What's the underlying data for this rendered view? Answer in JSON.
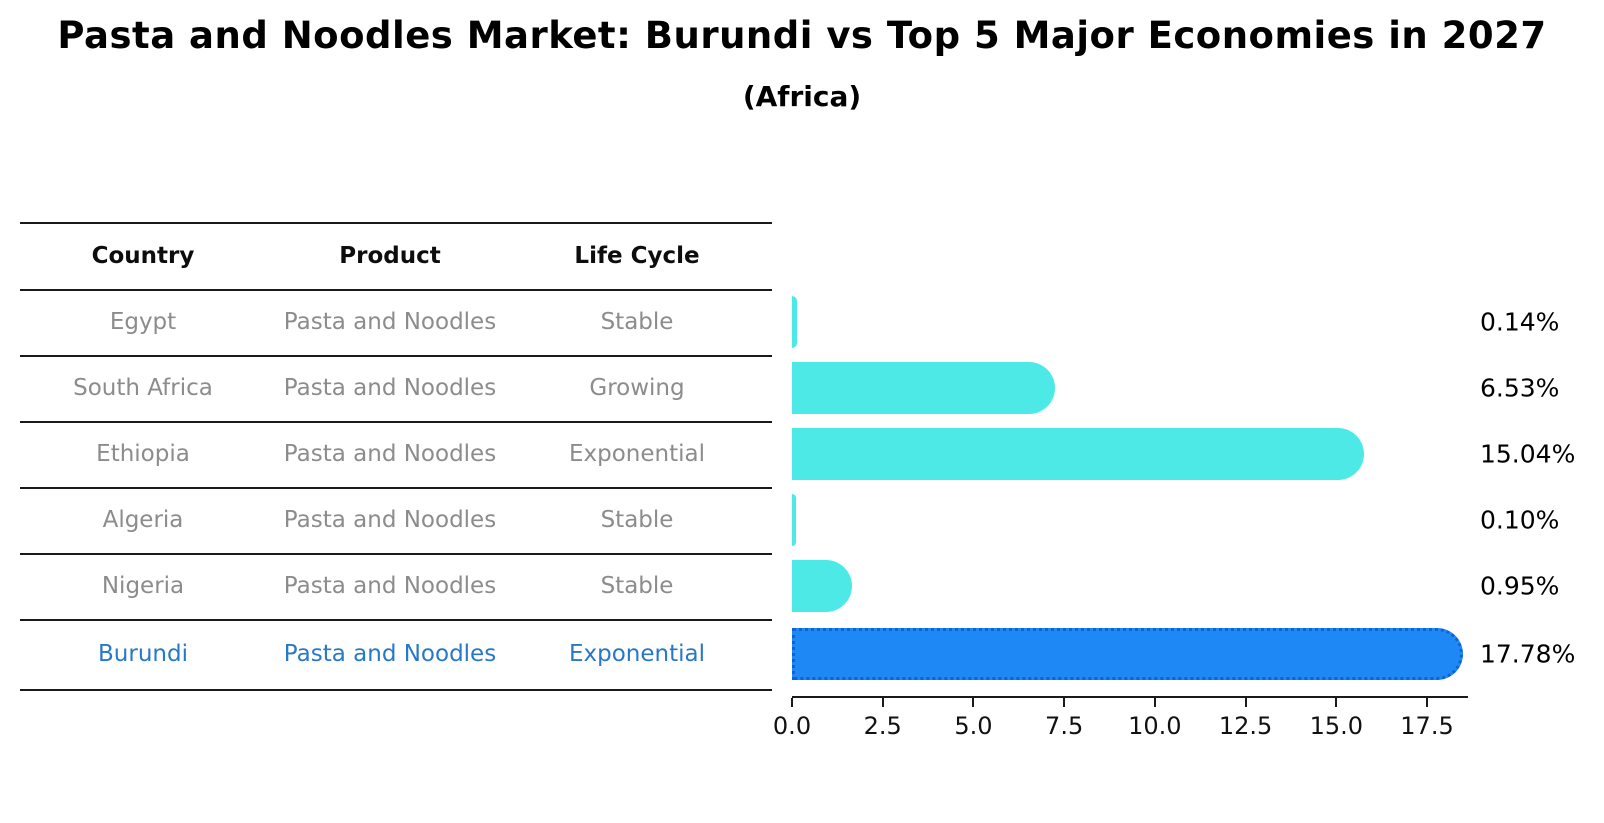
{
  "title": "Pasta and Noodles Market: Burundi vs Top 5 Major Economies in 2027",
  "subtitle": "(Africa)",
  "table": {
    "headers": [
      "Country",
      "Product",
      "Life Cycle"
    ]
  },
  "chart_data": {
    "type": "bar",
    "orientation": "horizontal",
    "title": "Pasta and Noodles Market: Burundi vs Top 5 Major Economies in 2027",
    "subtitle": "(Africa)",
    "x_axis": {
      "ticks": [
        0.0,
        2.5,
        5.0,
        7.5,
        10.0,
        12.5,
        15.0,
        17.5
      ],
      "range": [
        0,
        18.6
      ],
      "grid": false
    },
    "legend": "none",
    "rows": [
      {
        "country": "Egypt",
        "product": "Pasta and Noodles",
        "life_cycle": "Stable",
        "value": 0.14,
        "label": "0.14%",
        "highlight": false
      },
      {
        "country": "South Africa",
        "product": "Pasta and Noodles",
        "life_cycle": "Growing",
        "value": 6.53,
        "label": "6.53%",
        "highlight": false
      },
      {
        "country": "Ethiopia",
        "product": "Pasta and Noodles",
        "life_cycle": "Exponential",
        "value": 15.04,
        "label": "15.04%",
        "highlight": false
      },
      {
        "country": "Algeria",
        "product": "Pasta and Noodles",
        "life_cycle": "Stable",
        "value": 0.1,
        "label": "0.10%",
        "highlight": false
      },
      {
        "country": "Nigeria",
        "product": "Pasta and Noodles",
        "life_cycle": "Stable",
        "value": 0.95,
        "label": "0.95%",
        "highlight": false
      },
      {
        "country": "Burundi",
        "product": "Pasta and Noodles",
        "life_cycle": "Exponential",
        "value": 17.78,
        "label": "17.78%",
        "highlight": true
      }
    ],
    "colors": {
      "bar": "#4DE9E6",
      "highlight_bar": "#1E89F5",
      "highlight_edge": "#0f62d2",
      "row_text": "#8c8c8c",
      "highlight_text": "#2878c8",
      "header_text": "#0d0d0d",
      "axis_text": "#111111"
    }
  }
}
